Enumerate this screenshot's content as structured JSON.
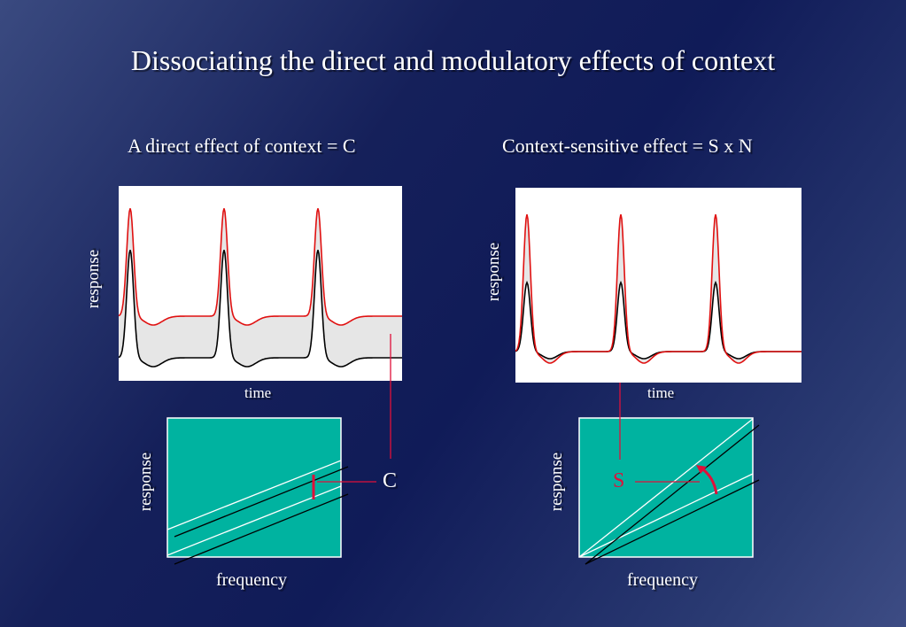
{
  "slide": {
    "title": "Dissociating the direct and modulatory effects of context"
  },
  "left": {
    "heading": "A direct effect of context = C",
    "top_ylabel": "response",
    "top_xlabel": "time",
    "bottom_ylabel": "response",
    "bottom_xlabel": "frequency",
    "marker_label": "C"
  },
  "right": {
    "heading": "Context-sensitive effect = S x N",
    "top_ylabel": "response",
    "top_xlabel": "time",
    "bottom_ylabel": "response",
    "bottom_xlabel": "frequency",
    "marker_label": "S"
  },
  "colors": {
    "context_curve": "#e01010",
    "baseline_curve": "#000000",
    "fill_between": "#e6e6e6",
    "panel_teal": "#00b3a0",
    "guide_line": "#e0103a"
  }
}
